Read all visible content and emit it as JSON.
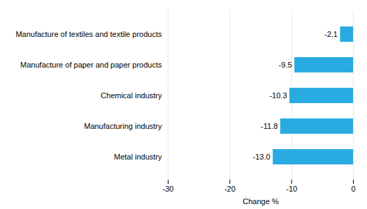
{
  "chart_data": {
    "type": "bar",
    "orientation": "horizontal",
    "categories": [
      "Metal industry",
      "Manufacturing industry",
      "Chemical industry",
      "Manufacture of paper and paper products",
      "Manufacture of textiles and textile products"
    ],
    "values": [
      -13.0,
      -11.8,
      -10.3,
      -9.5,
      -2.1
    ],
    "value_labels": [
      "-13.0",
      "-11.8",
      "-10.3",
      "-9.5",
      "-2.1"
    ],
    "data_labels": true,
    "color": "#29abe2",
    "xlabel": "Change %",
    "xlim": [
      -30,
      0
    ],
    "xticks": [
      -30,
      -20,
      -10,
      0
    ],
    "grid": true
  }
}
